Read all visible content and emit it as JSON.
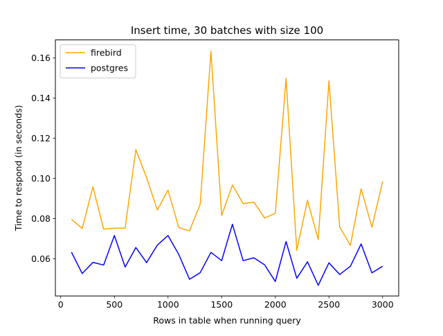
{
  "chart_data": {
    "type": "line",
    "title": "Insert time, 30 batches with size 100",
    "xlabel": "Rows in table when running query",
    "ylabel": "Time to respond (in seconds)",
    "xlim": [
      -50,
      3150
    ],
    "ylim": [
      0.0415,
      0.169
    ],
    "xticks": [
      0,
      500,
      1000,
      1500,
      2000,
      2500,
      3000
    ],
    "xtick_labels": [
      "0",
      "500",
      "1000",
      "1500",
      "2000",
      "2500",
      "3000"
    ],
    "yticks": [
      0.06,
      0.08,
      0.1,
      0.12,
      0.14,
      0.16
    ],
    "ytick_labels": [
      "0.06",
      "0.08",
      "0.10",
      "0.12",
      "0.14",
      "0.16"
    ],
    "grid": false,
    "legend_position": "upper-left",
    "x": [
      100,
      200,
      300,
      400,
      500,
      600,
      700,
      800,
      900,
      1000,
      1100,
      1200,
      1300,
      1400,
      1500,
      1600,
      1700,
      1800,
      1900,
      2000,
      2100,
      2200,
      2300,
      2400,
      2500,
      2600,
      2700,
      2800,
      2900,
      3000
    ],
    "series": [
      {
        "name": "firebird",
        "color": "#ffa500",
        "values": [
          0.0797,
          0.0751,
          0.0958,
          0.0748,
          0.0752,
          0.0753,
          0.1143,
          0.1005,
          0.0843,
          0.0942,
          0.0756,
          0.0739,
          0.0872,
          0.1634,
          0.0816,
          0.0967,
          0.0875,
          0.0882,
          0.0803,
          0.0826,
          0.1499,
          0.0642,
          0.0892,
          0.0695,
          0.1486,
          0.0758,
          0.0667,
          0.0949,
          0.0757,
          0.0985
        ]
      },
      {
        "name": "postgres",
        "color": "#0000ff",
        "values": [
          0.0633,
          0.0527,
          0.0582,
          0.0569,
          0.0716,
          0.0559,
          0.0656,
          0.0581,
          0.0668,
          0.0716,
          0.0622,
          0.0498,
          0.0531,
          0.0632,
          0.0591,
          0.0772,
          0.0591,
          0.0605,
          0.057,
          0.0487,
          0.0686,
          0.0503,
          0.0585,
          0.0468,
          0.058,
          0.0522,
          0.0563,
          0.0674,
          0.053,
          0.0563
        ]
      }
    ]
  }
}
